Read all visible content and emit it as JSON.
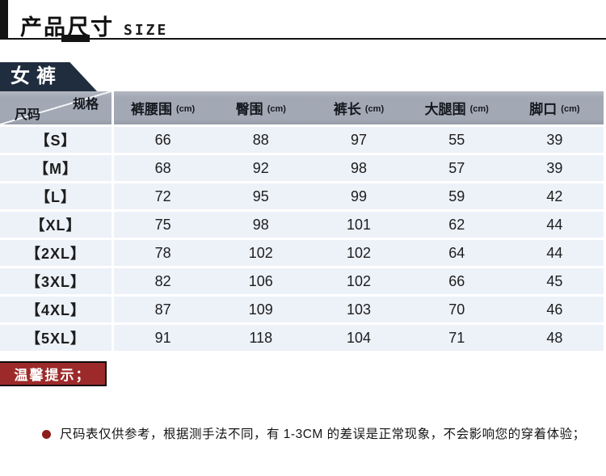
{
  "header": {
    "title": "产品尺寸",
    "subtitle": "SIZE"
  },
  "banner": {
    "label": "女裤"
  },
  "table": {
    "corner": {
      "top_right": "规格",
      "bottom_left": "尺码"
    },
    "columns": [
      {
        "label": "裤腰围",
        "unit": "(cm)"
      },
      {
        "label": "臀围",
        "unit": "(cm)"
      },
      {
        "label": "裤长",
        "unit": "(cm)"
      },
      {
        "label": "大腿围",
        "unit": "(cm)"
      },
      {
        "label": "脚口",
        "unit": "(cm)"
      }
    ],
    "rows": [
      {
        "size": "【S】",
        "values": [
          "66",
          "88",
          "97",
          "55",
          "39"
        ]
      },
      {
        "size": "【M】",
        "values": [
          "68",
          "92",
          "98",
          "57",
          "39"
        ]
      },
      {
        "size": "【L】",
        "values": [
          "72",
          "95",
          "99",
          "59",
          "42"
        ]
      },
      {
        "size": "【XL】",
        "values": [
          "75",
          "98",
          "101",
          "62",
          "44"
        ]
      },
      {
        "size": "【2XL】",
        "values": [
          "78",
          "102",
          "102",
          "64",
          "44"
        ]
      },
      {
        "size": "【3XL】",
        "values": [
          "82",
          "106",
          "102",
          "66",
          "45"
        ]
      },
      {
        "size": "【4XL】",
        "values": [
          "87",
          "109",
          "103",
          "70",
          "46"
        ]
      },
      {
        "size": "【5XL】",
        "values": [
          "91",
          "118",
          "104",
          "71",
          "48"
        ]
      }
    ]
  },
  "tips": {
    "banner_label": "温馨提示；",
    "note": "尺码表仅供参考，根据测手法不同，有 1-3CM 的差误是正常现象，不会影响您的穿着体验；"
  },
  "colors": {
    "navy": "#202d3e",
    "hdr-gray": "#a2a8b4",
    "row-bg": "#edf1f8",
    "red": "#9d2a2a",
    "ink": "#131313",
    "dot-red": "#8e1d1d"
  }
}
